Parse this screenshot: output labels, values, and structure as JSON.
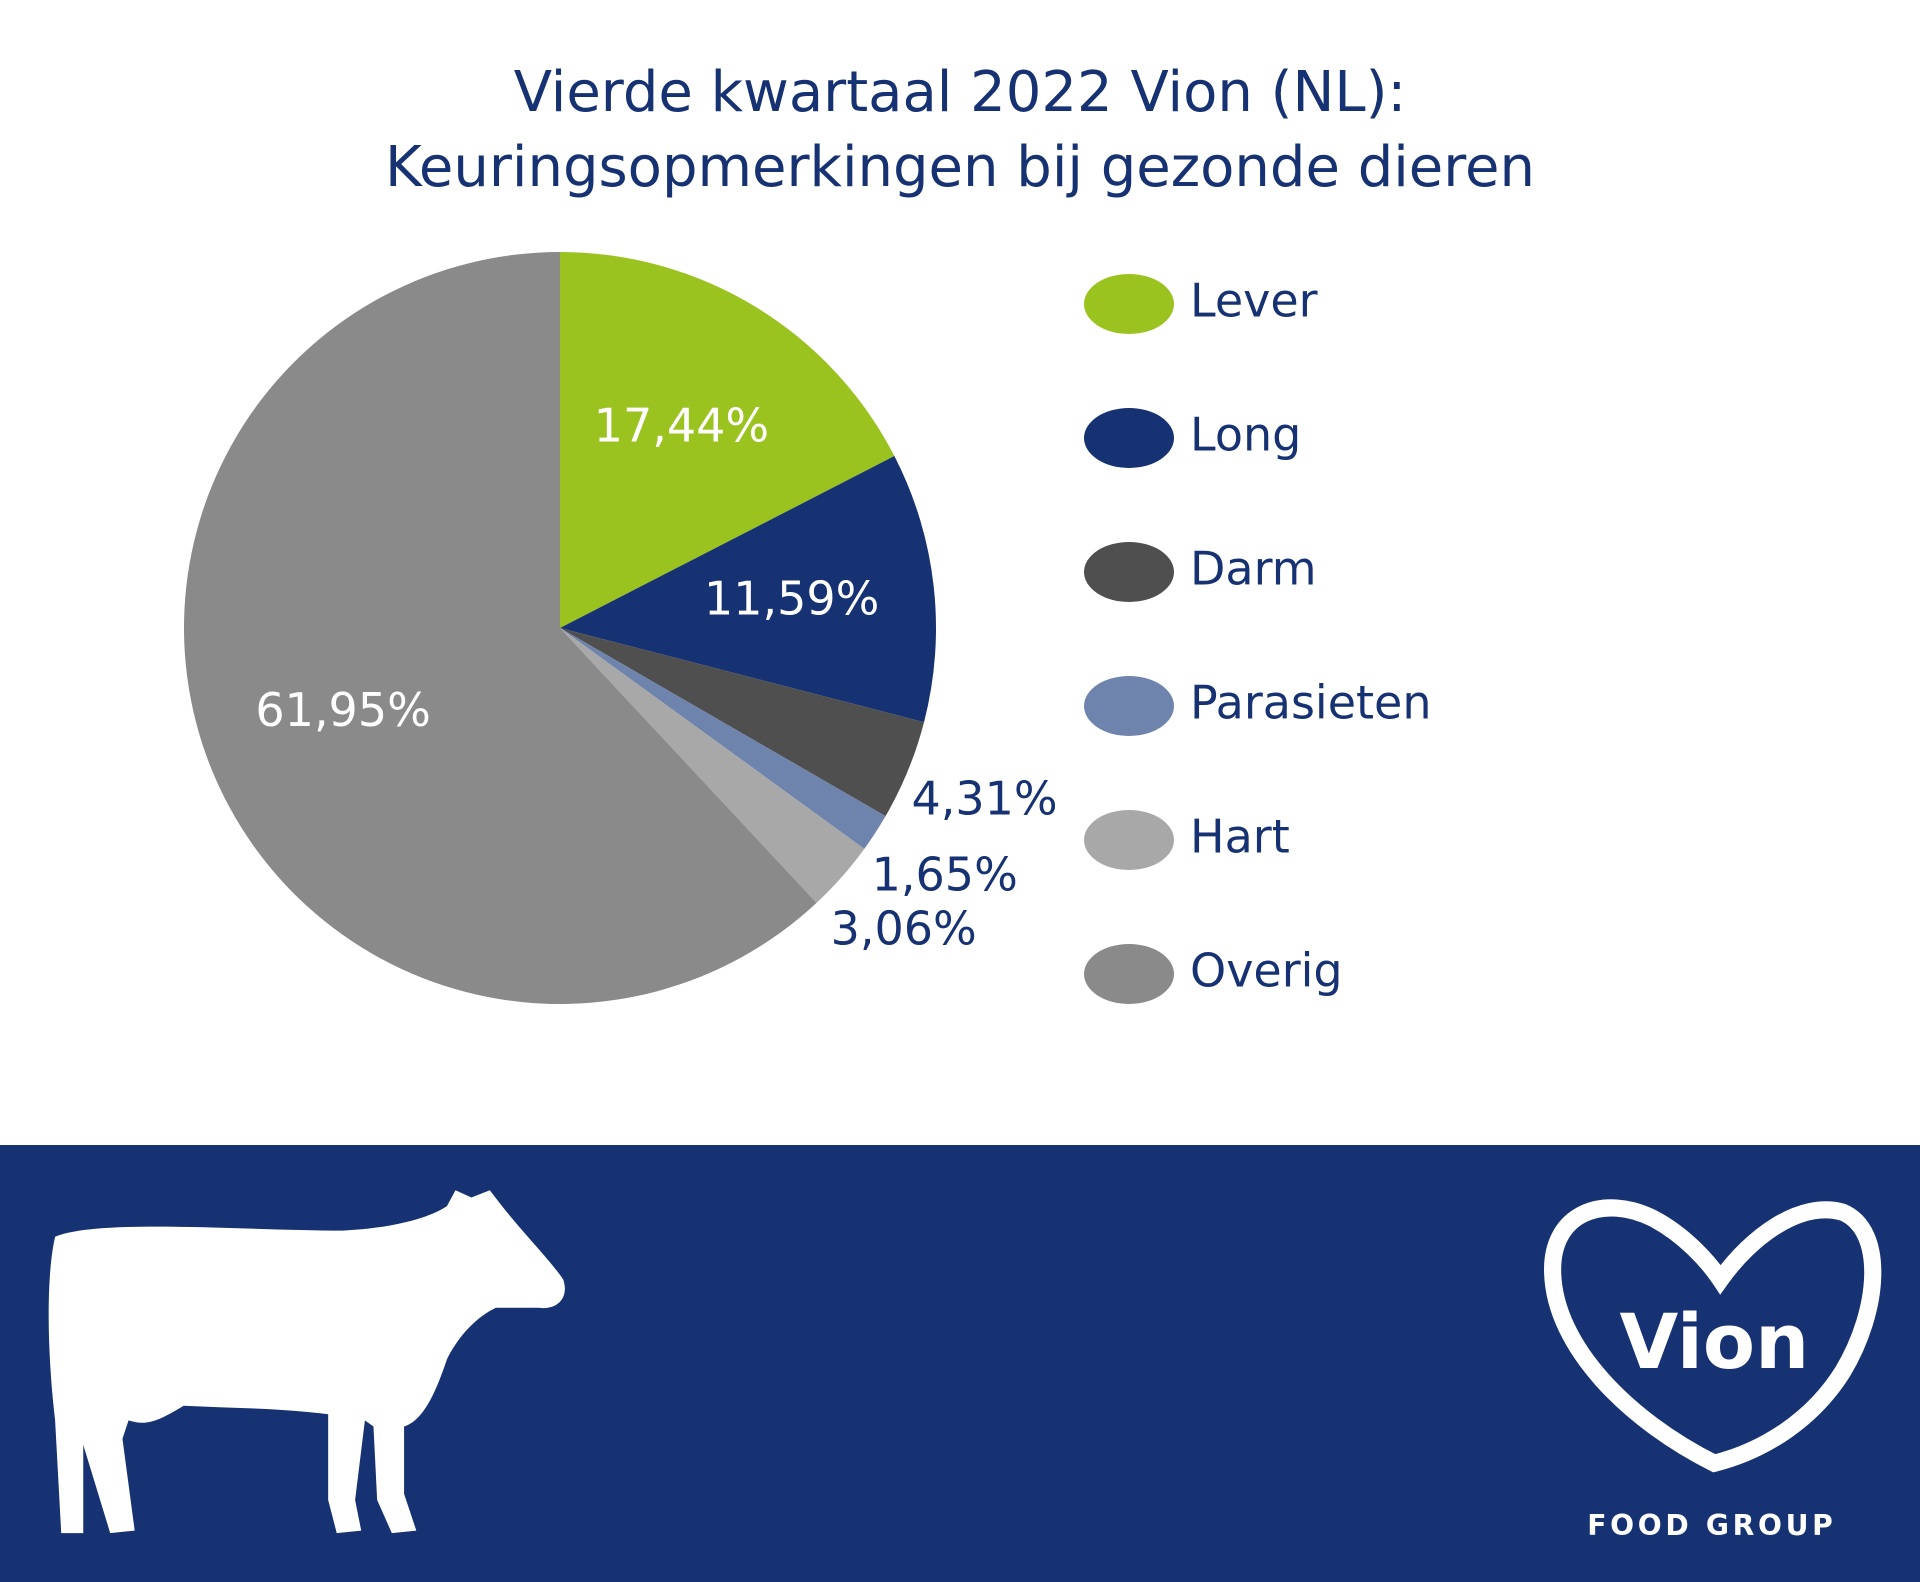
{
  "chart_data": {
    "type": "pie",
    "title": [
      "Vierde kwartaal 2022 Vion (NL):",
      "Keuringsopmerkingen bij gezonde dieren"
    ],
    "categories": [
      "Lever",
      "Long",
      "Darm",
      "Parasieten",
      "Hart",
      "Overig"
    ],
    "values": [
      17.44,
      11.59,
      4.31,
      1.65,
      3.06,
      61.95
    ],
    "value_labels": [
      "17,44%",
      "11,59%",
      "4,31%",
      "1,65%",
      "3,06%",
      "61,95%"
    ],
    "colors": [
      "#9bc31f",
      "#163272",
      "#4f4f4f",
      "#6f84ad",
      "#a8a8a8",
      "#8a8a8a"
    ],
    "legend": "right"
  },
  "logo": {
    "name": "Vion",
    "tagline": "FOOD GROUP"
  }
}
